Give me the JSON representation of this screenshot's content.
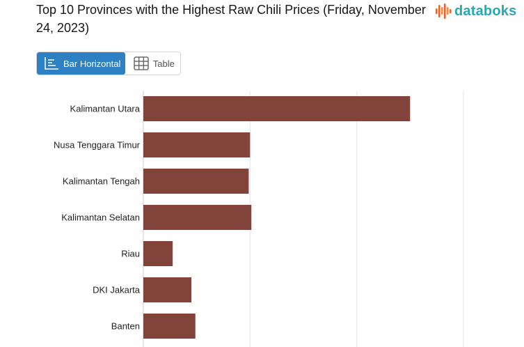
{
  "header": {
    "title": "Top 10 Provinces with the Highest Raw Chili Prices (Friday, November 24, 2023)",
    "brand": "databoks",
    "brand_color": "#2aa6b5"
  },
  "view_toggle": {
    "options": [
      {
        "label": "Bar Horizontal",
        "icon": "bar-horizontal-icon",
        "active": true
      },
      {
        "label": "Table",
        "icon": "table-icon",
        "active": false
      }
    ],
    "active_color": "#2e80c4"
  },
  "chart_data": {
    "type": "bar",
    "orientation": "horizontal",
    "categories": [
      "Kalimantan Utara",
      "Nusa Tenggara Timur",
      "Kalimantan Tengah",
      "Kalimantan Selatan",
      "Riau",
      "DKI Jakarta",
      "Banten"
    ],
    "values": [
      100000,
      40000,
      39500,
      40500,
      11000,
      18000,
      19500
    ],
    "xlim": [
      0,
      120000
    ],
    "gridlines": [
      0,
      40000,
      80000,
      120000
    ],
    "grid": true,
    "bar_color": "#82443a"
  }
}
